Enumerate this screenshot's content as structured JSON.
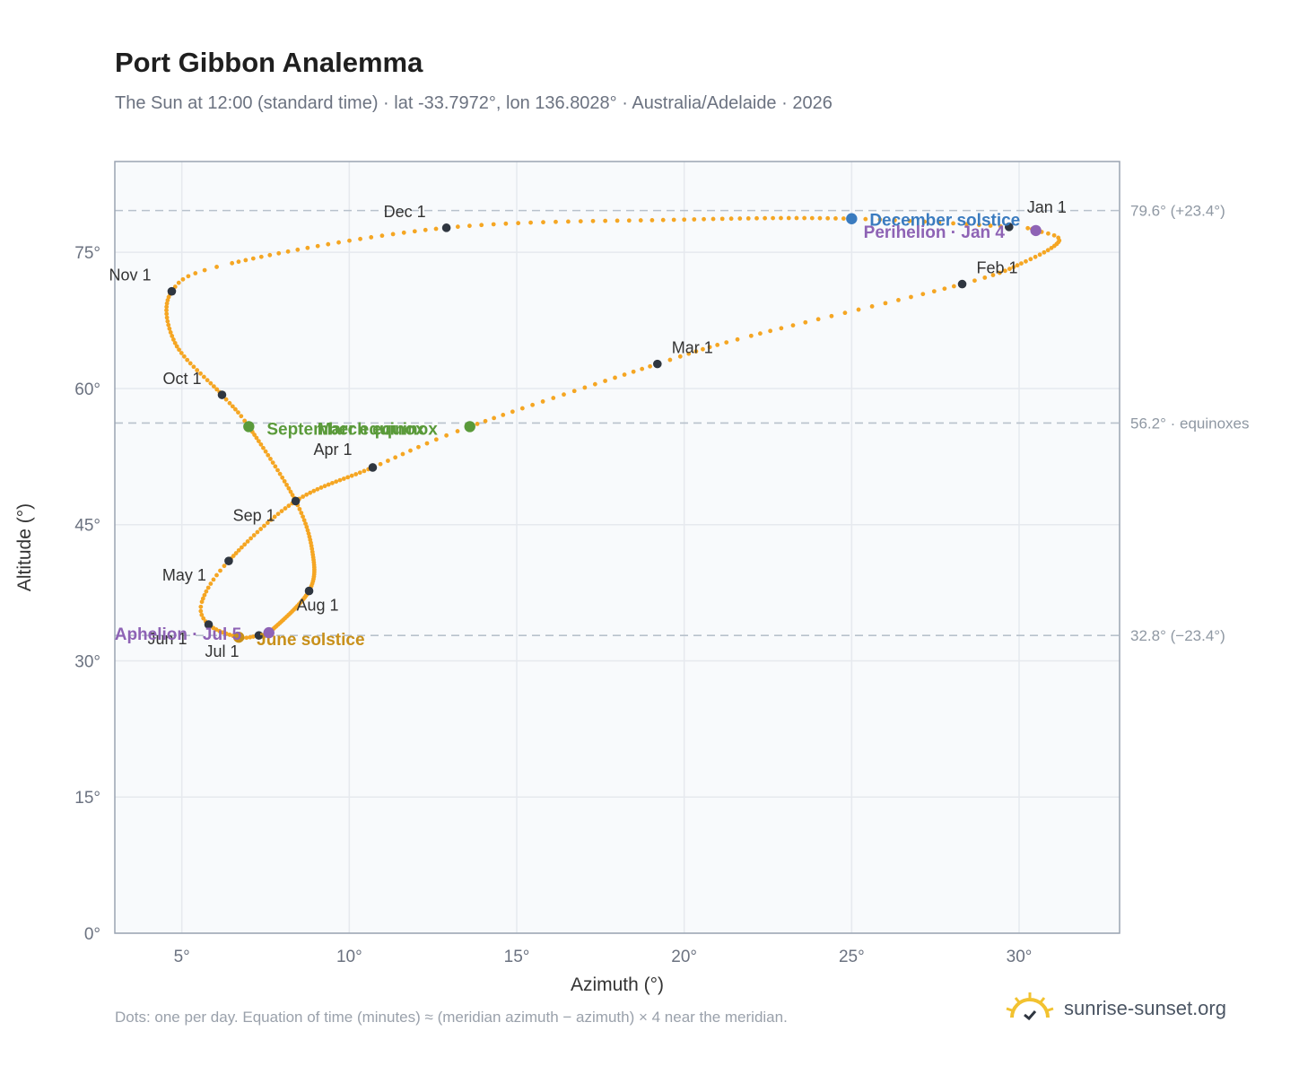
{
  "title": "Port Gibbon Analemma",
  "subtitle": "The Sun at 12:00 (standard time) · lat -33.7972°, lon 136.8028° · Australia/Adelaide · 2026",
  "footnote": "Dots: one per day. Equation of time (minutes) ≈ (meridian azimuth − azimuth) × 4 near the meridian.",
  "brand": {
    "name": "sunrise-sunset.org",
    "icon": "sun-logo-icon"
  },
  "colors": {
    "curve": "#f5a623",
    "month": "#2f3640",
    "december_solstice": "#3a7bbf",
    "june_solstice": "#c8901a",
    "equinox": "#5a9a3a",
    "apsis": "#8e63b5",
    "grid": "#e6e9ee",
    "frame": "#9aa4b2",
    "plot_bg": "#f8fafc",
    "ref_line": "#b8c2cc"
  },
  "chart_data": {
    "type": "scatter",
    "title": "Port Gibbon Analemma",
    "xlabel": "Azimuth (°)",
    "ylabel": "Altitude (°)",
    "xlim": [
      3,
      33
    ],
    "ylim": [
      0,
      85
    ],
    "x_ticks": [
      5,
      10,
      15,
      20,
      25,
      30
    ],
    "x_tick_labels": [
      "5°",
      "10°",
      "15°",
      "20°",
      "25°",
      "30°"
    ],
    "y_ticks": [
      0,
      15,
      30,
      45,
      60,
      75
    ],
    "y_tick_labels": [
      "0°",
      "15°",
      "30°",
      "45°",
      "60°",
      "75°"
    ],
    "grid": true,
    "reference_lines": [
      {
        "y": 79.6,
        "label": "79.6° (+23.4°)"
      },
      {
        "y": 56.2,
        "label": "56.2° · equinoxes"
      },
      {
        "y": 32.8,
        "label": "32.8° (−23.4°)"
      }
    ],
    "month_markers": [
      {
        "label": "Jan 1",
        "x": 29.7,
        "y": 77.8
      },
      {
        "label": "Feb 1",
        "x": 28.3,
        "y": 71.5
      },
      {
        "label": "Mar 1",
        "x": 19.2,
        "y": 62.7
      },
      {
        "label": "Apr 1",
        "x": 10.7,
        "y": 51.3
      },
      {
        "label": "May 1",
        "x": 6.4,
        "y": 41.0
      },
      {
        "label": "Jun 1",
        "x": 5.8,
        "y": 34.0
      },
      {
        "label": "Jul 1",
        "x": 7.3,
        "y": 32.8
      },
      {
        "label": "Aug 1",
        "x": 8.8,
        "y": 37.7
      },
      {
        "label": "Sep 1",
        "x": 8.4,
        "y": 47.6
      },
      {
        "label": "Oct 1",
        "x": 6.2,
        "y": 59.3
      },
      {
        "label": "Nov 1",
        "x": 4.7,
        "y": 70.7
      },
      {
        "label": "Dec 1",
        "x": 12.9,
        "y": 77.7
      }
    ],
    "events": [
      {
        "label": "December solstice",
        "x": 25.0,
        "y": 78.7
      },
      {
        "label": "June solstice",
        "x": 6.7,
        "y": 32.6
      },
      {
        "label": "March equinox",
        "x": 13.6,
        "y": 55.8
      },
      {
        "label": "September equinox",
        "x": 7.0,
        "y": 55.8
      },
      {
        "label": "Perihelion · Jan 4",
        "x": 30.5,
        "y": 77.4
      },
      {
        "label": "Aphelion · Jul 5",
        "x": 7.6,
        "y": 33.1
      }
    ],
    "path_knots": [
      [
        29.7,
        77.8
      ],
      [
        30.5,
        77.4
      ],
      [
        31.2,
        76.3
      ],
      [
        30.2,
        74.0
      ],
      [
        28.3,
        71.5
      ],
      [
        22.0,
        65.8
      ],
      [
        19.2,
        62.7
      ],
      [
        13.6,
        55.8
      ],
      [
        10.7,
        51.3
      ],
      [
        8.4,
        47.6
      ],
      [
        6.4,
        41.0
      ],
      [
        5.6,
        36.5
      ],
      [
        5.8,
        34.0
      ],
      [
        6.7,
        32.6
      ],
      [
        7.3,
        32.8
      ],
      [
        7.6,
        33.1
      ],
      [
        8.8,
        37.7
      ],
      [
        8.9,
        42.0
      ],
      [
        8.4,
        47.6
      ],
      [
        7.0,
        55.8
      ],
      [
        6.2,
        59.3
      ],
      [
        4.8,
        65.0
      ],
      [
        4.7,
        70.7
      ],
      [
        6.5,
        73.8
      ],
      [
        12.9,
        77.7
      ],
      [
        20.0,
        78.6
      ],
      [
        25.0,
        78.7
      ],
      [
        29.7,
        77.8
      ]
    ],
    "days_per_segment": [
      3,
      5,
      10,
      10,
      18,
      10,
      20,
      11,
      20,
      21,
      10,
      6,
      10,
      6,
      4,
      27,
      16,
      15,
      22,
      8,
      16,
      15,
      8,
      22,
      20,
      20,
      12
    ]
  }
}
